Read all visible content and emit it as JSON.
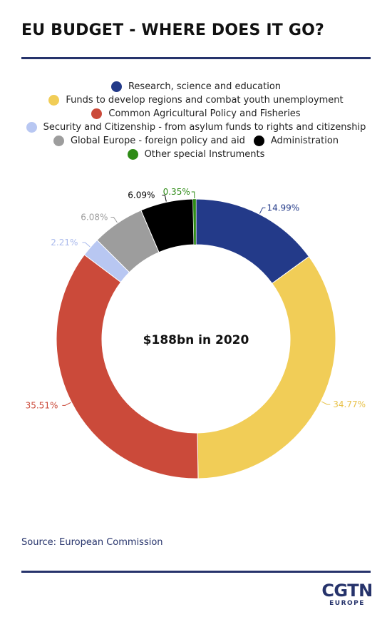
{
  "title": "EU BUDGET - WHERE DOES IT GO?",
  "chart_data": {
    "type": "pie",
    "variant": "donut",
    "center_label": "$188bn in 2020",
    "categories": [
      "Research, science and education",
      "Funds to develop regions and combat youth unemployment",
      "Common Agricultural Policy and Fisheries",
      "Security and Citizenship - from asylum funds to rights and citizenship",
      "Global Europe - foreign policy and aid",
      "Administration",
      "Other special Instruments"
    ],
    "values": [
      14.99,
      34.77,
      35.51,
      2.21,
      6.08,
      6.09,
      0.35
    ],
    "value_labels": [
      "14.99%",
      "34.77%",
      "35.51%",
      "2.21%",
      "6.08%",
      "6.09%",
      "0.35%"
    ],
    "colors": [
      "#233a89",
      "#f1cd57",
      "#cb4a3a",
      "#b8c7f2",
      "#9d9d9d",
      "#000000",
      "#2e8b16"
    ],
    "label_colors": [
      "#233a89",
      "#e8c24a",
      "#cb4a3a",
      "#a9b9ec",
      "#9d9d9d",
      "#000000",
      "#2e8b16"
    ],
    "legend_position": "top-center",
    "legend_rows": [
      [
        0
      ],
      [
        1
      ],
      [
        2
      ],
      [
        3
      ],
      [
        4,
        5
      ],
      [
        6
      ]
    ]
  },
  "source": "Source: European Commission",
  "logo": {
    "main": "CGTN",
    "sub": "EUROPE"
  }
}
